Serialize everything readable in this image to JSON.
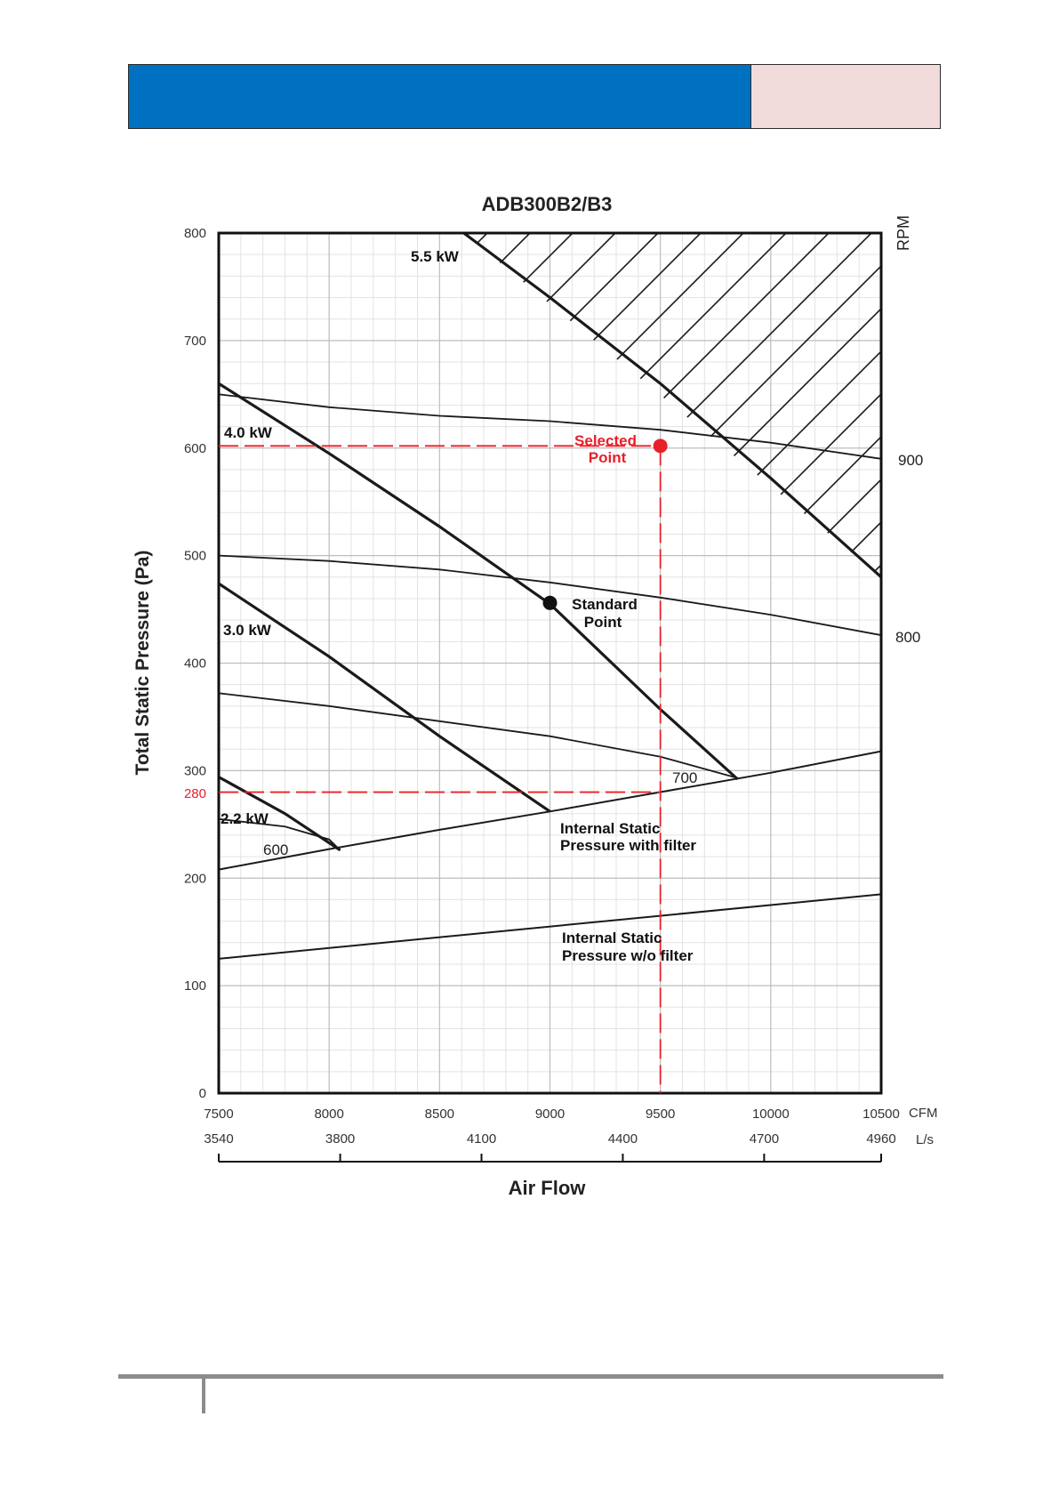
{
  "header": {
    "accent": "#0070c0",
    "side_tint": "#f2dcdb"
  },
  "chart_data": {
    "type": "line",
    "title": "ADB300B2/B3",
    "xlabel": "Air Flow",
    "ylabel": "Total Static Pressure (Pa)",
    "right_axis_label": "RPM",
    "x_unit": "CFM",
    "x2_unit": "L/s",
    "xlim": [
      7500,
      10500
    ],
    "ylim": [
      0,
      800
    ],
    "grid": true,
    "x_ticks": [
      "7500",
      "8000",
      "8500",
      "9000",
      "9500",
      "10000",
      "10500"
    ],
    "x2_ticks": [
      "3540",
      "3800",
      "4100",
      "4400",
      "4700",
      "4960"
    ],
    "x2_tick_cfm": [
      7500,
      8050,
      8690,
      9330,
      9970,
      10500
    ],
    "y_ticks": [
      "0",
      "100",
      "200",
      "300",
      "400",
      "500",
      "600",
      "700",
      "800"
    ],
    "rpm_curves": [
      {
        "label": "900",
        "points": [
          [
            7500,
            650
          ],
          [
            8000,
            638
          ],
          [
            8500,
            630
          ],
          [
            9000,
            625
          ],
          [
            9500,
            617
          ],
          [
            10000,
            605
          ],
          [
            10500,
            590
          ]
        ]
      },
      {
        "label": "800",
        "points": [
          [
            7500,
            500
          ],
          [
            8000,
            495
          ],
          [
            8500,
            487
          ],
          [
            9000,
            475
          ],
          [
            9500,
            461
          ],
          [
            10000,
            445
          ],
          [
            10500,
            426
          ]
        ]
      },
      {
        "label": "700",
        "points": [
          [
            7500,
            372
          ],
          [
            8000,
            360
          ],
          [
            8500,
            346
          ],
          [
            9000,
            332
          ],
          [
            9500,
            313
          ],
          [
            9850,
            293
          ]
        ]
      },
      {
        "label": "600",
        "points": [
          [
            7500,
            255
          ],
          [
            7800,
            248
          ],
          [
            8000,
            236
          ],
          [
            8050,
            226
          ]
        ]
      }
    ],
    "power_curves": [
      {
        "label": "5.5 kW",
        "points": [
          [
            8610,
            800
          ],
          [
            9000,
            740
          ],
          [
            9500,
            660
          ],
          [
            10000,
            572
          ],
          [
            10500,
            480
          ]
        ]
      },
      {
        "label": "4.0 kW",
        "points": [
          [
            7500,
            660
          ],
          [
            8000,
            595
          ],
          [
            8500,
            527
          ],
          [
            9000,
            455
          ],
          [
            9500,
            357
          ],
          [
            9850,
            292
          ]
        ]
      },
      {
        "label": "3.0 kW",
        "points": [
          [
            7500,
            474
          ],
          [
            8000,
            406
          ],
          [
            8500,
            332
          ],
          [
            9000,
            262
          ]
        ]
      },
      {
        "label": "2.2 kW",
        "points": [
          [
            7500,
            294
          ],
          [
            7800,
            260
          ],
          [
            8050,
            226
          ]
        ]
      }
    ],
    "system_curves": [
      {
        "label_line1": "Internal Static",
        "label_line2": "Pressure with filter",
        "points": [
          [
            7500,
            208
          ],
          [
            8000,
            227
          ],
          [
            8500,
            245
          ],
          [
            9000,
            262
          ],
          [
            9500,
            280
          ],
          [
            10000,
            298
          ],
          [
            10500,
            318
          ]
        ]
      },
      {
        "label_line1": "Internal Static",
        "label_line2": "Pressure w/o filter",
        "points": [
          [
            7500,
            125
          ],
          [
            10500,
            185
          ]
        ]
      }
    ],
    "hatched_region": {
      "description_points": [
        [
          8610,
          800
        ],
        [
          10500,
          800
        ],
        [
          10500,
          480
        ]
      ]
    },
    "standard_point": {
      "label_line1": "Standard",
      "label_line2": "Point",
      "x": 9000,
      "y": 456
    },
    "selected_point": {
      "label_line1": "Selected",
      "label_line2": "Point",
      "x": 9500,
      "y": 602,
      "y_marker_label": "280",
      "y_marker_value": 280
    },
    "colors": {
      "curve": "#1a1a1a",
      "grid": "#bdbdbd",
      "minor_grid": "#e3e3e3",
      "selected": "#e8202a"
    }
  }
}
